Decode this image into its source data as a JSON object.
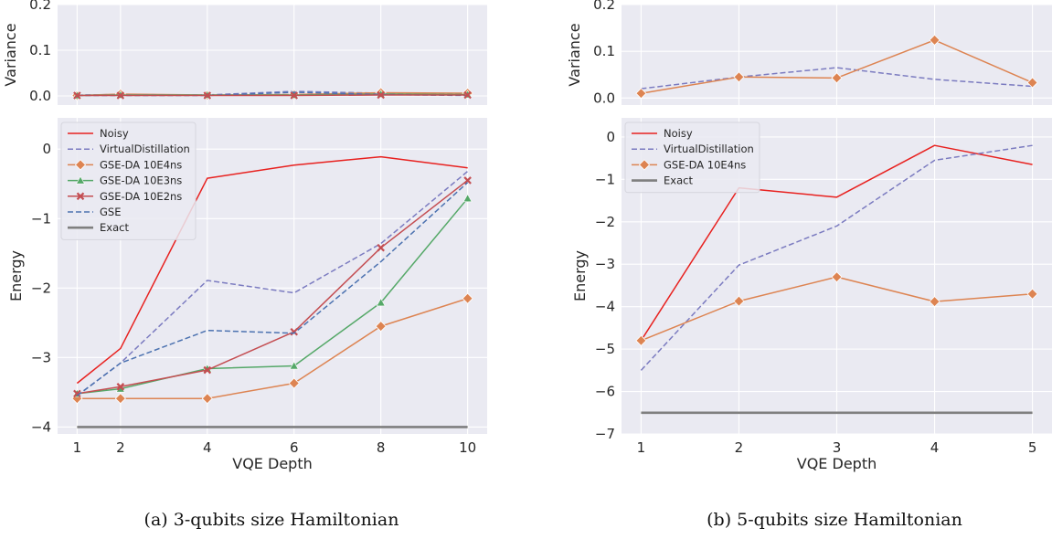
{
  "colors": {
    "background": "#eaeaf2",
    "grid": "#ffffff",
    "Noisy": "#e8211f",
    "VirtualDistillation": "#7b7bc0",
    "GSE-DA 10E4ns": "#dd8452",
    "GSE-DA 10E3ns": "#55a868",
    "GSE-DA 10E2ns": "#c44e52",
    "GSE": "#4c72b0",
    "Exact": "#7f7f7f"
  },
  "chart_data": [
    {
      "id": "a",
      "caption": "(a) 3-qubits size Hamiltonian",
      "xlabel": "VQE Depth",
      "xticks": [
        1,
        2,
        4,
        6,
        8,
        10
      ],
      "xlim": [
        0.55,
        10.45
      ],
      "variance": {
        "type": "line",
        "ylabel": "Variance",
        "ylim": [
          -0.02,
          0.2
        ],
        "yticks": [
          "0.0",
          "0.1",
          "0.2"
        ],
        "grid": true,
        "series": [
          {
            "name": "VirtualDistillation",
            "x": [
              1,
              2,
              4,
              6,
              8,
              10
            ],
            "values": [
              0.002,
              0.003,
              0.002,
              0.01,
              0.006,
              0.004
            ],
            "dash": true
          },
          {
            "name": "GSE-DA 10E4ns",
            "x": [
              1,
              2,
              4,
              6,
              8,
              10
            ],
            "values": [
              0.001,
              0.004,
              0.002,
              0.003,
              0.007,
              0.006
            ],
            "marker": "diamond"
          },
          {
            "name": "GSE-DA 10E3ns",
            "x": [
              1,
              2,
              4,
              6,
              8,
              10
            ],
            "values": [
              0.001,
              0.002,
              0.002,
              0.002,
              0.004,
              0.003
            ],
            "marker": "triangle"
          },
          {
            "name": "GSE",
            "x": [
              1,
              2,
              4,
              6,
              8,
              10
            ],
            "values": [
              0.001,
              0.001,
              0.001,
              0.008,
              0.003,
              0.001
            ],
            "dash": true
          },
          {
            "name": "GSE-DA 10E2ns",
            "x": [
              1,
              2,
              4,
              6,
              8,
              10
            ],
            "values": [
              0.001,
              0.001,
              0.001,
              0.001,
              0.002,
              0.002
            ],
            "marker": "x"
          }
        ]
      },
      "energy": {
        "type": "line",
        "ylabel": "Energy",
        "ylim": [
          -4.1,
          0.45
        ],
        "yticks": [
          "0",
          "−1",
          "−2",
          "−3",
          "−4"
        ],
        "ytick_values": [
          0,
          -1,
          -2,
          -3,
          -4
        ],
        "grid": true,
        "legend_position": "top-left",
        "series": [
          {
            "name": "Noisy",
            "x": [
              1,
              2,
              4,
              6,
              8,
              10
            ],
            "values": [
              -3.37,
              -2.87,
              -0.42,
              -0.23,
              -0.11,
              -0.27
            ]
          },
          {
            "name": "VirtualDistillation",
            "x": [
              1,
              2,
              4,
              6,
              8,
              10
            ],
            "values": [
              -3.55,
              -3.08,
              -1.89,
              -2.07,
              -1.36,
              -0.32
            ],
            "dash": true
          },
          {
            "name": "GSE-DA 10E4ns",
            "x": [
              1,
              2,
              4,
              6,
              8,
              10
            ],
            "values": [
              -3.59,
              -3.59,
              -3.59,
              -3.37,
              -2.55,
              -2.15
            ],
            "marker": "diamond"
          },
          {
            "name": "GSE-DA 10E3ns",
            "x": [
              1,
              2,
              4,
              6,
              8,
              10
            ],
            "values": [
              -3.52,
              -3.45,
              -3.16,
              -3.12,
              -2.21,
              -0.71
            ],
            "marker": "triangle"
          },
          {
            "name": "GSE-DA 10E2ns",
            "x": [
              1,
              2,
              4,
              6,
              8,
              10
            ],
            "values": [
              -3.52,
              -3.42,
              -3.18,
              -2.63,
              -1.42,
              -0.45
            ],
            "marker": "x"
          },
          {
            "name": "GSE",
            "x": [
              1,
              2,
              4,
              6,
              8,
              10
            ],
            "values": [
              -3.55,
              -3.08,
              -2.61,
              -2.65,
              -1.62,
              -0.48
            ],
            "dash": true
          },
          {
            "name": "Exact",
            "x": [
              1,
              2,
              4,
              6,
              8,
              10
            ],
            "values": [
              -4.0,
              -4.0,
              -4.0,
              -4.0,
              -4.0,
              -4.0
            ],
            "thick": true
          }
        ]
      }
    },
    {
      "id": "b",
      "caption": "(b) 5-qubits size Hamiltonian",
      "xlabel": "VQE Depth",
      "xticks": [
        1,
        2,
        3,
        4,
        5
      ],
      "xlim": [
        0.8,
        5.2
      ],
      "variance": {
        "type": "line",
        "ylabel": "Variance",
        "ylim": [
          -0.015,
          0.2
        ],
        "yticks": [
          "0.0",
          "0.1",
          "0.2"
        ],
        "grid": true,
        "series": [
          {
            "name": "VirtualDistillation",
            "x": [
              1,
              2,
              3,
              4,
              5
            ],
            "values": [
              0.02,
              0.045,
              0.065,
              0.04,
              0.025
            ],
            "dash": true
          },
          {
            "name": "GSE-DA 10E4ns",
            "x": [
              1,
              2,
              3,
              4,
              5
            ],
            "values": [
              0.01,
              0.045,
              0.043,
              0.124,
              0.033
            ],
            "marker": "diamond"
          }
        ]
      },
      "energy": {
        "type": "line",
        "ylabel": "Energy",
        "ylim": [
          -7.0,
          0.45
        ],
        "yticks": [
          "0",
          "−1",
          "−2",
          "−3",
          "−4",
          "−5",
          "−6",
          "−7"
        ],
        "ytick_values": [
          0,
          -1,
          -2,
          -3,
          -4,
          -5,
          -6,
          -7
        ],
        "grid": true,
        "legend_position": "top-left",
        "series": [
          {
            "name": "Noisy",
            "x": [
              1,
              2,
              3,
              4,
              5
            ],
            "values": [
              -4.8,
              -1.2,
              -1.42,
              -0.2,
              -0.65
            ]
          },
          {
            "name": "VirtualDistillation",
            "x": [
              1,
              2,
              3,
              4,
              5
            ],
            "values": [
              -5.5,
              -3.02,
              -2.1,
              -0.55,
              -0.2
            ],
            "dash": true
          },
          {
            "name": "GSE-DA 10E4ns",
            "x": [
              1,
              2,
              3,
              4,
              5
            ],
            "values": [
              -4.8,
              -3.87,
              -3.3,
              -3.88,
              -3.7
            ],
            "marker": "diamond"
          },
          {
            "name": "Exact",
            "x": [
              1,
              2,
              3,
              4,
              5
            ],
            "values": [
              -6.5,
              -6.5,
              -6.5,
              -6.5,
              -6.5
            ],
            "thick": true
          }
        ]
      }
    }
  ]
}
